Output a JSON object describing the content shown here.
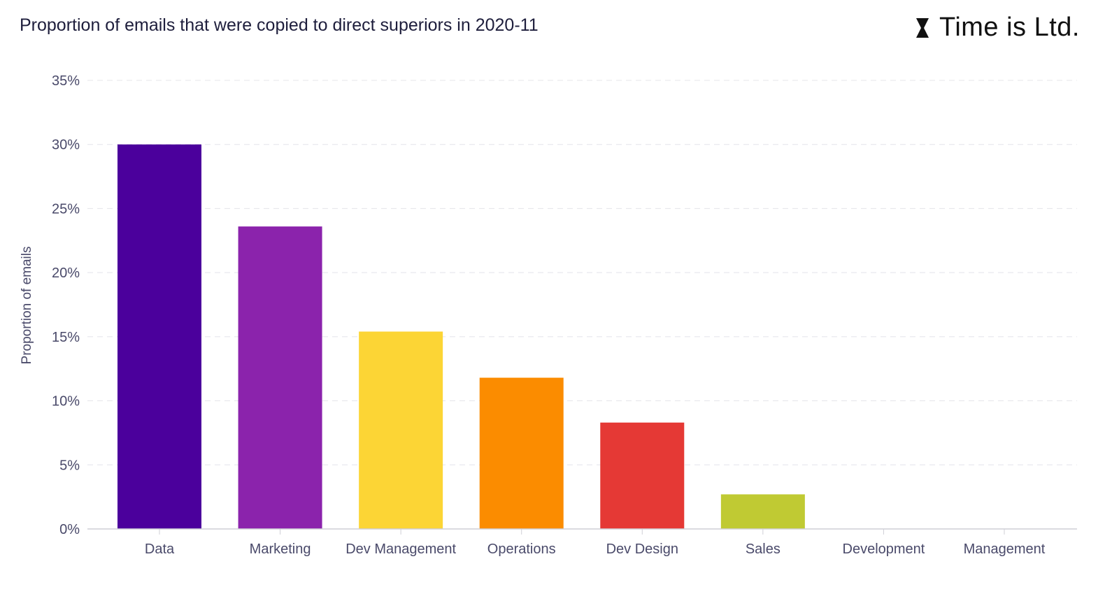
{
  "header": {
    "title": "Proportion of emails that were copied to direct superiors in 2020-11",
    "brand": "Time is Ltd.",
    "brand_icon": "hourglass-icon"
  },
  "chart_data": {
    "type": "bar",
    "title": "Proportion of emails that were copied to direct superiors in 2020-11",
    "xlabel": "",
    "ylabel": "Proportion of emails",
    "ylim": [
      0,
      35
    ],
    "yticks": [
      0,
      5,
      10,
      15,
      20,
      25,
      30,
      35
    ],
    "ytick_labels": [
      "0%",
      "5%",
      "10%",
      "15%",
      "20%",
      "25%",
      "30%",
      "35%"
    ],
    "grid": true,
    "categories": [
      "Data",
      "Marketing",
      "Dev Management",
      "Operations",
      "Dev Design",
      "Sales",
      "Development",
      "Management"
    ],
    "values": [
      30.0,
      23.6,
      15.4,
      11.8,
      8.3,
      2.7,
      0,
      0
    ],
    "colors": [
      "#4b009c",
      "#8b23ac",
      "#fcd535",
      "#fb8c00",
      "#e53935",
      "#c0ca33",
      "#cccccc",
      "#cccccc"
    ]
  }
}
